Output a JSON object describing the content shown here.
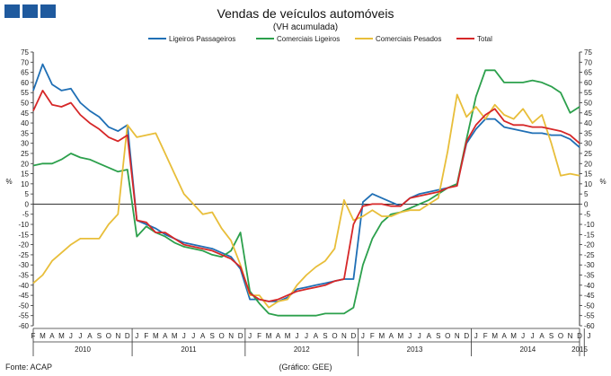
{
  "header": {
    "title": "Vendas de veículos automóveis",
    "subtitle": "(VH acumulada)"
  },
  "footer": {
    "source": "Fonte: ACAP",
    "credit": "(Gráfico: GEE)"
  },
  "chart_data": {
    "type": "line",
    "ylabel_left": "%",
    "ylabel_right": "%",
    "ylim": [
      -60,
      75
    ],
    "yticks": [
      75,
      70,
      65,
      60,
      55,
      50,
      45,
      40,
      35,
      30,
      25,
      20,
      15,
      10,
      5,
      0,
      -5,
      -10,
      -15,
      -20,
      -25,
      -30,
      -35,
      -40,
      -45,
      -50,
      -55,
      -60
    ],
    "grid": false,
    "legend_position": "top",
    "month_labels": [
      "F",
      "M",
      "A",
      "M",
      "J",
      "J",
      "A",
      "S",
      "O",
      "N",
      "D",
      "J",
      "F",
      "M",
      "A",
      "M",
      "J",
      "J",
      "A",
      "S",
      "O",
      "N",
      "D",
      "J",
      "F",
      "M",
      "A",
      "M",
      "J",
      "J",
      "A",
      "S",
      "O",
      "N",
      "D",
      "J",
      "F",
      "M",
      "A",
      "M",
      "J",
      "J",
      "A",
      "S",
      "O",
      "N",
      "D",
      "J",
      "F",
      "M",
      "A",
      "M",
      "J",
      "J",
      "A",
      "S",
      "O",
      "N",
      "D",
      "J"
    ],
    "year_labels": [
      "2010",
      "2011",
      "2012",
      "2013",
      "2014",
      "2015"
    ],
    "series": [
      {
        "name": "Ligeiros Passageiros",
        "color": "#1f6fb5",
        "values": [
          56,
          69,
          59,
          56,
          57,
          50,
          46,
          43,
          38,
          36,
          39,
          -8,
          -10,
          -12,
          -15,
          -17,
          -19,
          -20,
          -21,
          -22,
          -24,
          -26,
          -32,
          -47,
          -47,
          -48,
          -48,
          -46,
          -42,
          -41,
          -40,
          -39,
          -38,
          -37,
          -37,
          1,
          5,
          3,
          1,
          -1,
          3,
          5,
          6,
          7,
          8,
          10,
          30,
          37,
          42,
          42,
          38,
          37,
          36,
          35,
          35,
          34,
          34,
          32,
          28
        ],
        "names_x_positions": "none"
      },
      {
        "name": "Comerciais Ligeiros",
        "color": "#2ca04c",
        "values": [
          19,
          20,
          20,
          22,
          25,
          23,
          22,
          20,
          18,
          16,
          17,
          -16,
          -11,
          -14,
          -16,
          -19,
          -21,
          -22,
          -23,
          -25,
          -26,
          -23,
          -14,
          -43,
          -49,
          -54,
          -55,
          -55,
          -55,
          -55,
          -55,
          -54,
          -54,
          -54,
          -51,
          -30,
          -17,
          -9,
          -5,
          -4,
          -2,
          0,
          2,
          5,
          8,
          10,
          32,
          53,
          66,
          66,
          60,
          60,
          60,
          61,
          60,
          58,
          55,
          45,
          48
        ]
      },
      {
        "name": "Comerciais Pesados",
        "color": "#e8be3a",
        "values": [
          -39,
          -35,
          -28,
          -24,
          -20,
          -17,
          -17,
          -17,
          -10,
          -5,
          39,
          33,
          34,
          35,
          25,
          15,
          5,
          0,
          -5,
          -4,
          -12,
          -18,
          -30,
          -45,
          -45,
          -51,
          -48,
          -47,
          -40,
          -35,
          -31,
          -28,
          -22,
          2,
          -8,
          -6,
          -3,
          -6,
          -6,
          -4,
          -3,
          -3,
          0,
          3,
          26,
          54,
          43,
          48,
          42,
          49,
          44,
          42,
          47,
          40,
          44,
          30,
          14,
          15,
          14
        ]
      },
      {
        "name": "Total",
        "color": "#d62728",
        "values": [
          46,
          56,
          49,
          48,
          50,
          44,
          40,
          37,
          33,
          31,
          34,
          -8,
          -9,
          -14,
          -14,
          -17,
          -20,
          -21,
          -22,
          -23,
          -25,
          -27,
          -31,
          -44,
          -47,
          -48,
          -47,
          -45,
          -43,
          -42,
          -41,
          -40,
          -38,
          -37,
          -10,
          -1,
          0,
          0,
          -1,
          -1,
          3,
          4,
          5,
          6,
          8,
          9,
          31,
          39,
          44,
          47,
          41,
          39,
          39,
          38,
          38,
          37,
          36,
          34,
          30
        ]
      }
    ]
  }
}
